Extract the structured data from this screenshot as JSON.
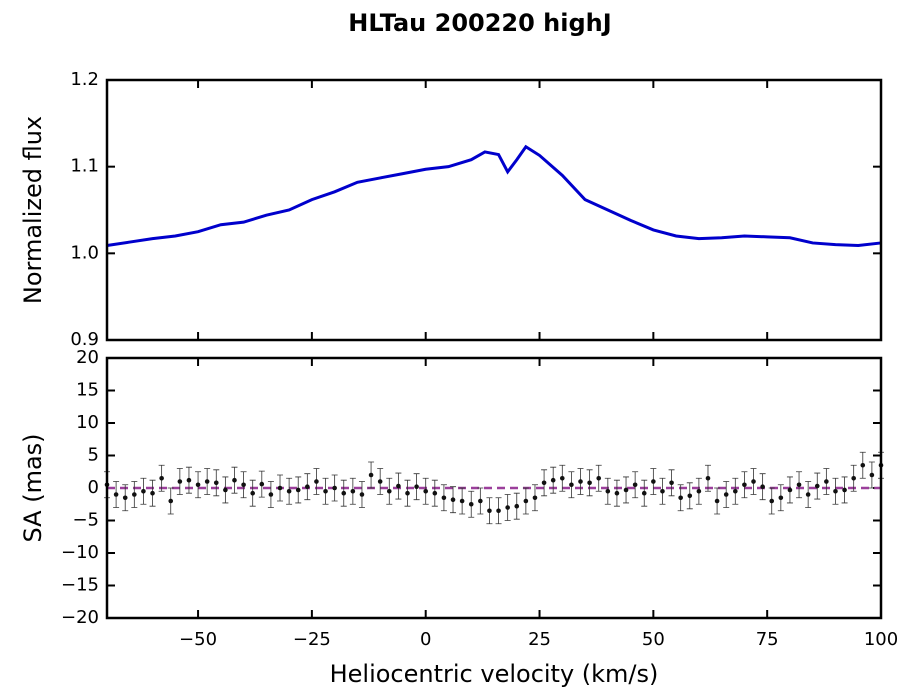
{
  "title": "HLTau 200220 highJ",
  "chart_data": [
    {
      "type": "line",
      "ylabel": "Normalized flux",
      "color": "#0000cc",
      "x": [
        -70,
        -65,
        -60,
        -55,
        -50,
        -45,
        -40,
        -35,
        -30,
        -25,
        -20,
        -15,
        -10,
        -5,
        0,
        5,
        10,
        13,
        16,
        18,
        20,
        22,
        25,
        30,
        35,
        40,
        45,
        50,
        55,
        60,
        65,
        70,
        75,
        80,
        85,
        90,
        95,
        100
      ],
      "values": [
        1.009,
        1.013,
        1.017,
        1.02,
        1.025,
        1.033,
        1.036,
        1.044,
        1.05,
        1.062,
        1.071,
        1.082,
        1.087,
        1.092,
        1.097,
        1.1,
        1.108,
        1.117,
        1.114,
        1.094,
        1.108,
        1.123,
        1.113,
        1.09,
        1.062,
        1.05,
        1.038,
        1.027,
        1.02,
        1.017,
        1.018,
        1.02,
        1.019,
        1.018,
        1.012,
        1.01,
        1.009,
        1.012
      ],
      "xlim": [
        -70,
        100
      ],
      "xticks": [
        -50,
        -25,
        0,
        25,
        50,
        75,
        100
      ],
      "ylim": [
        0.9,
        1.2
      ],
      "yticks": [
        0.9,
        {
          "value": 1,
          "label": "1.0"
        },
        1.1,
        1.2
      ]
    },
    {
      "type": "errorbar",
      "ylabel": "SA (mas)",
      "xlabel": "Heliocentric velocity (km/s)",
      "color": "#111111",
      "error": 2,
      "reference_line": {
        "value": 0,
        "color": "#9b3f9b"
      },
      "x": [
        -70,
        -68,
        -66,
        -64,
        -62,
        -60,
        -58,
        -56,
        -54,
        -52,
        -50,
        -48,
        -46,
        -44,
        -42,
        -40,
        -38,
        -36,
        -34,
        -32,
        -30,
        -28,
        -26,
        -24,
        -22,
        -20,
        -18,
        -16,
        -14,
        -12,
        -10,
        -8,
        -6,
        -4,
        -2,
        0,
        2,
        4,
        6,
        8,
        10,
        12,
        14,
        16,
        18,
        20,
        22,
        24,
        26,
        28,
        30,
        32,
        34,
        36,
        38,
        40,
        42,
        44,
        46,
        48,
        50,
        52,
        54,
        56,
        58,
        60,
        62,
        64,
        66,
        68,
        70,
        72,
        74,
        76,
        78,
        80,
        82,
        84,
        86,
        88,
        90,
        92,
        94,
        96,
        98,
        100
      ],
      "values": [
        0.5,
        -1,
        -1.5,
        -1,
        -0.5,
        -0.8,
        1.5,
        -2,
        1,
        1.2,
        0.5,
        1,
        0.8,
        -0.3,
        1.2,
        0.5,
        -0.8,
        0.6,
        -1,
        0,
        -0.5,
        -0.3,
        0.2,
        1,
        -0.5,
        0,
        -0.8,
        -0.5,
        -1,
        2,
        1,
        -0.5,
        0.3,
        -0.8,
        0.2,
        -0.5,
        -0.8,
        -1.5,
        -1.8,
        -2,
        -2.5,
        -2,
        -3.5,
        -3.5,
        -3,
        -2.8,
        -2,
        -1.5,
        0.8,
        1.2,
        1.5,
        0.5,
        1,
        0.8,
        1.5,
        -0.5,
        -0.8,
        -0.3,
        0.5,
        -0.8,
        1,
        -0.5,
        0.8,
        -1.5,
        -1.2,
        -0.5,
        1.5,
        -2,
        -1,
        -0.5,
        0.5,
        1,
        0.2,
        -2,
        -1.5,
        -0.3,
        0.5,
        -1,
        0.3,
        1,
        -0.5,
        -0.3,
        1.5,
        3.5,
        2,
        3.5
      ],
      "xlim": [
        -70,
        100
      ],
      "xticks": [
        {
          "value": -50,
          "label": "−50"
        },
        {
          "value": -25,
          "label": "−25"
        },
        0,
        25,
        50,
        75,
        100
      ],
      "ylim": [
        -20,
        20
      ],
      "yticks": [
        {
          "value": -20,
          "label": "−20"
        },
        {
          "value": -15,
          "label": "−15"
        },
        {
          "value": -10,
          "label": "−10"
        },
        {
          "value": -5,
          "label": "−5"
        },
        0,
        5,
        10,
        15,
        20
      ]
    }
  ]
}
